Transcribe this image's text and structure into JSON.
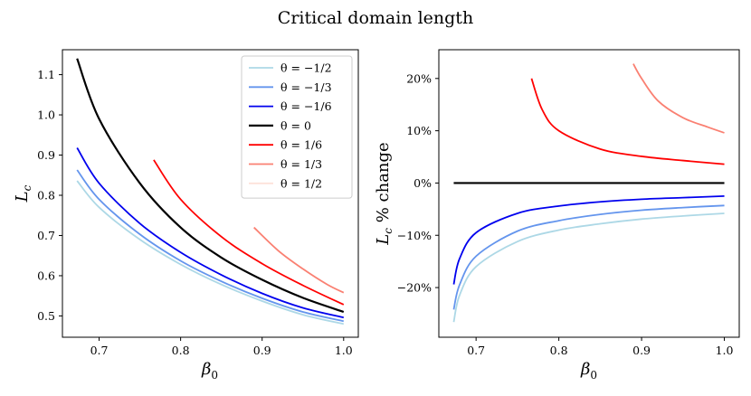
{
  "figure_title": "Critical domain length",
  "chart_data": [
    {
      "type": "line",
      "xlabel": "β₀",
      "ylabel": "L_c",
      "xlim": [
        0.655,
        1.018
      ],
      "ylim": [
        0.447,
        1.162
      ],
      "xticks": [
        0.7,
        0.8,
        0.9,
        1.0
      ],
      "yticks": [
        0.5,
        0.6,
        0.7,
        0.8,
        0.9,
        1.0,
        1.1
      ],
      "xtick_labels": [
        "0.7",
        "0.8",
        "0.9",
        "1.0"
      ],
      "ytick_labels": [
        "0.5",
        "0.6",
        "0.7",
        "0.8",
        "0.9",
        "1.0",
        "1.1"
      ],
      "legend_position": "top-right",
      "series": [
        {
          "name": "θ = −1/2",
          "color": "#add8e6",
          "x": [
            0.673,
            0.7,
            0.75,
            0.8,
            0.85,
            0.9,
            0.95,
            1.0
          ],
          "y": [
            0.836,
            0.77,
            0.69,
            0.628,
            0.578,
            0.537,
            0.503,
            0.48
          ]
        },
        {
          "name": "θ = −1/3",
          "color": "#6495ed",
          "x": [
            0.673,
            0.7,
            0.75,
            0.8,
            0.85,
            0.9,
            0.95,
            1.0
          ],
          "y": [
            0.863,
            0.79,
            0.703,
            0.637,
            0.586,
            0.544,
            0.51,
            0.487
          ]
        },
        {
          "name": "θ = −1/6",
          "color": "#0000ee",
          "x": [
            0.673,
            0.7,
            0.75,
            0.8,
            0.85,
            0.9,
            0.95,
            1.0
          ],
          "y": [
            0.918,
            0.83,
            0.73,
            0.658,
            0.602,
            0.556,
            0.52,
            0.496
          ]
        },
        {
          "name": "θ = 0",
          "color": "#000000",
          "x": [
            0.673,
            0.7,
            0.75,
            0.8,
            0.85,
            0.9,
            0.95,
            1.0
          ],
          "y": [
            1.14,
            0.99,
            0.83,
            0.72,
            0.645,
            0.59,
            0.545,
            0.51
          ]
        },
        {
          "name": "θ = 1/6",
          "color": "#ff0000",
          "x": [
            0.767,
            0.8,
            0.85,
            0.9,
            0.95,
            1.0
          ],
          "y": [
            0.888,
            0.79,
            0.697,
            0.63,
            0.576,
            0.528
          ]
        },
        {
          "name": "θ = 1/3",
          "color": "#fa8072",
          "x": [
            0.89,
            0.92,
            0.95,
            0.98,
            1.0
          ],
          "y": [
            0.72,
            0.662,
            0.617,
            0.578,
            0.558
          ]
        },
        {
          "name": "θ = 1/2",
          "color": "#fde2da",
          "x": [],
          "y": []
        }
      ]
    },
    {
      "type": "line",
      "xlabel": "β₀",
      "ylabel": "L_c % change",
      "xlim": [
        0.655,
        1.018
      ],
      "ylim": [
        -29.5,
        25.5
      ],
      "xticks": [
        0.7,
        0.8,
        0.9,
        1.0
      ],
      "yticks": [
        -20,
        -10,
        0,
        10,
        20
      ],
      "xtick_labels": [
        "0.7",
        "0.8",
        "0.9",
        "1.0"
      ],
      "ytick_labels": [
        "−20%",
        "−10%",
        "0%",
        "10%",
        "20%"
      ],
      "series": [
        {
          "name": "θ = −1/2",
          "color": "#add8e6",
          "x": [
            0.673,
            0.68,
            0.7,
            0.75,
            0.8,
            0.85,
            0.9,
            0.95,
            1.0
          ],
          "y": [
            -26.6,
            -21.5,
            -16.0,
            -11.2,
            -9.0,
            -7.8,
            -6.9,
            -6.3,
            -5.8
          ]
        },
        {
          "name": "θ = −1/3",
          "color": "#6495ed",
          "x": [
            0.673,
            0.68,
            0.7,
            0.75,
            0.8,
            0.85,
            0.9,
            0.95,
            1.0
          ],
          "y": [
            -24.2,
            -19.5,
            -14.0,
            -9.2,
            -7.2,
            -6.0,
            -5.2,
            -4.7,
            -4.3
          ]
        },
        {
          "name": "θ = −1/6",
          "color": "#0000ee",
          "x": [
            0.673,
            0.68,
            0.7,
            0.75,
            0.8,
            0.85,
            0.9,
            0.95,
            1.0
          ],
          "y": [
            -19.4,
            -14.5,
            -9.5,
            -5.8,
            -4.4,
            -3.6,
            -3.1,
            -2.8,
            -2.5
          ]
        },
        {
          "name": "θ = 0",
          "color": "#000000",
          "x": [
            0.673,
            1.0
          ],
          "y": [
            0,
            0
          ]
        },
        {
          "name": "θ = 1/6",
          "color": "#ff0000",
          "x": [
            0.767,
            0.78,
            0.8,
            0.85,
            0.9,
            0.95,
            1.0
          ],
          "y": [
            20.0,
            14.0,
            10.0,
            6.5,
            5.1,
            4.3,
            3.6
          ]
        },
        {
          "name": "θ = 1/3",
          "color": "#fa8072",
          "x": [
            0.89,
            0.9,
            0.92,
            0.95,
            0.98,
            1.0
          ],
          "y": [
            22.8,
            20.0,
            15.7,
            12.5,
            10.7,
            9.6
          ]
        }
      ]
    }
  ]
}
